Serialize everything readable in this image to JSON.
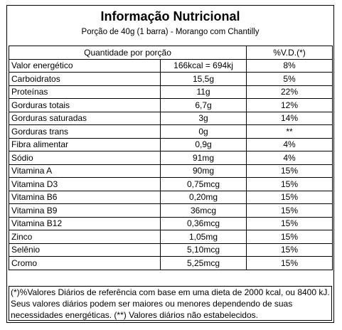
{
  "header": {
    "title": "Informação Nutricional",
    "subtitle": "Porção de 40g (1 barra) - Morango com Chantilly"
  },
  "table": {
    "header": [
      "Quantidade por porção",
      "%V.D.(*)"
    ],
    "rows": [
      [
        "Valor energético",
        "166kcal = 694kj",
        "8%"
      ],
      [
        "Carboidratos",
        "15,5g",
        "5%"
      ],
      [
        "Proteínas",
        "11g",
        "22%"
      ],
      [
        "Gorduras totais",
        "6,7g",
        "12%"
      ],
      [
        "Gorduras saturadas",
        "3g",
        "14%"
      ],
      [
        "Gorduras trans",
        "0g",
        "**"
      ],
      [
        "Fibra alimentar",
        "0,9g",
        "4%"
      ],
      [
        "Sódio",
        "91mg",
        "4%"
      ],
      [
        "Vitamina A",
        "90mg",
        "15%"
      ],
      [
        "Vitamina D3",
        "0,75mcg",
        "15%"
      ],
      [
        "Vitamina B6",
        "0,20mg",
        "15%"
      ],
      [
        "Vitamina B9",
        "36mcg",
        "15%"
      ],
      [
        "Vitamina B12",
        "0,36mcg",
        "15%"
      ],
      [
        "Zinco",
        "1,05mg",
        "15%"
      ],
      [
        "Selênio",
        "5,10mcg",
        "15%"
      ],
      [
        "Cromo",
        "5,25mcg",
        "15%"
      ]
    ]
  },
  "footnote": "(*)%Valores Diários de referência com base em uma dieta de 2000 kcal, ou 8400 kJ. Seus valores diários podem ser maiores ou menores dependendo de suas necessidades energéticas. (**) Valores diários não estabelecidos."
}
